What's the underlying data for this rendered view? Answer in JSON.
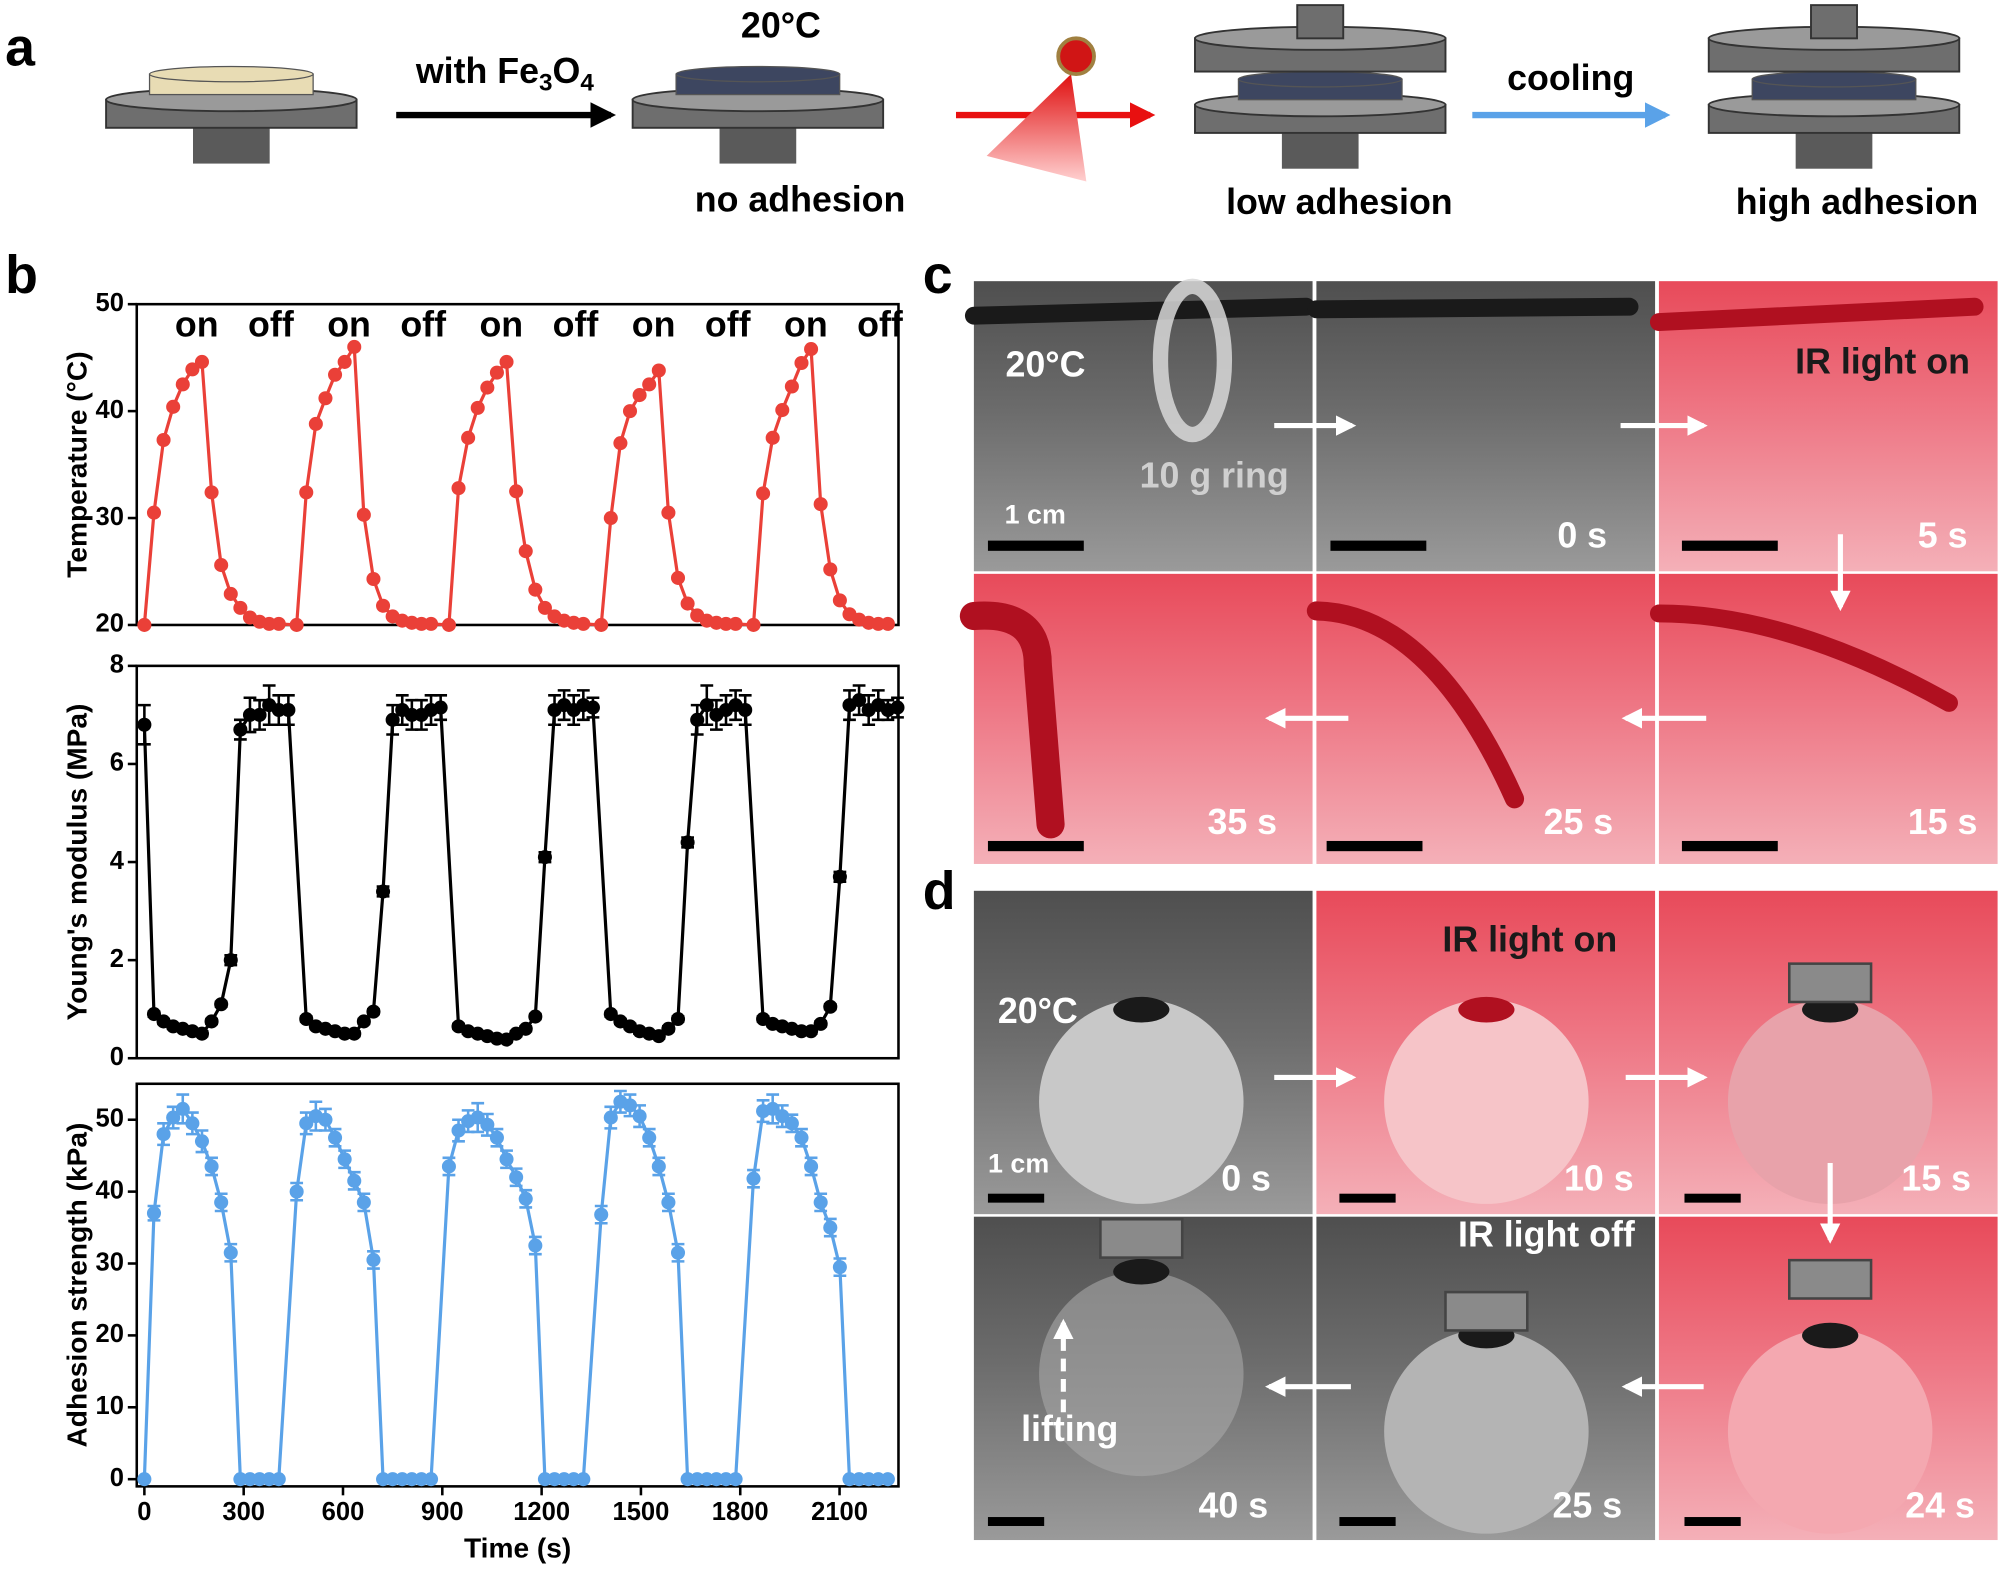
{
  "panel_labels": [
    "a",
    "b",
    "c",
    "d"
  ],
  "panel_a": {
    "step1": [
      "with Fe",
      "3",
      "O",
      "4"
    ],
    "temperature": "20°C",
    "step3": "cooling",
    "states": [
      "no adhesion",
      "low adhesion",
      "high adhesion"
    ]
  },
  "chart_data": [
    {
      "type": "line",
      "ylabel": "Temperature (°C)",
      "color": "#ea4038",
      "annotations": [
        "on",
        "off",
        "on",
        "off",
        "on",
        "off",
        "on",
        "off",
        "on",
        "off"
      ],
      "xlim": [
        -23,
        2278
      ],
      "ylim": [
        20,
        50
      ],
      "yticks": [
        20,
        30,
        40,
        50
      ],
      "x": [
        0,
        29,
        58,
        87,
        116,
        145,
        174,
        203,
        232,
        261,
        290,
        319,
        348,
        377,
        406,
        460,
        489,
        518,
        547,
        576,
        605,
        634,
        663,
        692,
        721,
        750,
        779,
        808,
        837,
        866,
        920,
        949,
        978,
        1007,
        1036,
        1065,
        1094,
        1123,
        1152,
        1181,
        1210,
        1239,
        1268,
        1297,
        1326,
        1380,
        1409,
        1438,
        1467,
        1496,
        1525,
        1554,
        1583,
        1612,
        1641,
        1670,
        1699,
        1728,
        1757,
        1786,
        1840,
        1869,
        1898,
        1927,
        1956,
        1985,
        2014,
        2043,
        2072,
        2101,
        2130,
        2159,
        2188,
        2217,
        2246
      ],
      "values": [
        20,
        30.5,
        37.3,
        40.4,
        42.5,
        43.9,
        44.6,
        32.4,
        25.6,
        22.9,
        21.6,
        20.7,
        20.3,
        20.1,
        20.1,
        20,
        32.4,
        38.8,
        41.2,
        43.4,
        44.6,
        46,
        30.3,
        24.3,
        21.8,
        20.8,
        20.4,
        20.2,
        20.1,
        20.1,
        20,
        32.8,
        37.5,
        40.3,
        42.2,
        43.6,
        44.6,
        32.5,
        26.9,
        23.3,
        21.6,
        20.8,
        20.4,
        20.2,
        20.1,
        20,
        30,
        37,
        40,
        41.5,
        42.5,
        43.8,
        30.5,
        24.4,
        22,
        20.9,
        20.4,
        20.2,
        20.1,
        20.1,
        20,
        32.3,
        37.5,
        40.1,
        42.3,
        44.5,
        45.8,
        31.3,
        25.2,
        22.3,
        21,
        20.5,
        20.2,
        20.1,
        20.1
      ]
    },
    {
      "type": "line",
      "ylabel": "Young's modulus (MPa)",
      "color": "#000000",
      "xlim": [
        -23,
        2278
      ],
      "ylim": [
        0,
        8
      ],
      "yticks": [
        0,
        2,
        4,
        6,
        8
      ],
      "x": [
        0,
        29,
        58,
        87,
        116,
        145,
        174,
        203,
        232,
        261,
        290,
        319,
        348,
        377,
        406,
        435,
        489,
        518,
        547,
        576,
        605,
        634,
        663,
        692,
        721,
        750,
        779,
        808,
        837,
        866,
        895,
        949,
        978,
        1007,
        1036,
        1065,
        1094,
        1123,
        1152,
        1181,
        1210,
        1239,
        1268,
        1297,
        1326,
        1355,
        1409,
        1438,
        1467,
        1496,
        1525,
        1554,
        1583,
        1612,
        1641,
        1670,
        1699,
        1728,
        1757,
        1786,
        1815,
        1869,
        1898,
        1927,
        1956,
        1985,
        2014,
        2043,
        2072,
        2101,
        2130,
        2159,
        2188,
        2217,
        2246,
        2275
      ],
      "values": [
        6.8,
        0.9,
        0.75,
        0.65,
        0.6,
        0.55,
        0.5,
        0.75,
        1.1,
        2.0,
        6.7,
        7.0,
        7.0,
        7.2,
        7.1,
        7.1,
        0.8,
        0.65,
        0.6,
        0.55,
        0.5,
        0.5,
        0.75,
        0.95,
        3.4,
        6.9,
        7.1,
        7.0,
        7.0,
        7.1,
        7.15,
        0.65,
        0.55,
        0.5,
        0.45,
        0.4,
        0.38,
        0.5,
        0.6,
        0.85,
        4.1,
        7.1,
        7.2,
        7.1,
        7.2,
        7.15,
        0.9,
        0.75,
        0.65,
        0.55,
        0.5,
        0.45,
        0.6,
        0.8,
        4.4,
        6.9,
        7.2,
        7.0,
        7.1,
        7.2,
        7.1,
        0.8,
        0.7,
        0.65,
        0.6,
        0.55,
        0.55,
        0.7,
        1.05,
        3.7,
        7.2,
        7.3,
        7.1,
        7.2,
        7.1,
        7.15
      ],
      "errors": [
        0.4,
        0.05,
        0.05,
        0.05,
        0.05,
        0.05,
        0.05,
        0.05,
        0.05,
        0.1,
        0.2,
        0.35,
        0.3,
        0.4,
        0.3,
        0.3,
        0.05,
        0.05,
        0.05,
        0.05,
        0.05,
        0.05,
        0.05,
        0.05,
        0.1,
        0.3,
        0.3,
        0.3,
        0.3,
        0.3,
        0.25,
        0.05,
        0.05,
        0.05,
        0.05,
        0.05,
        0.05,
        0.05,
        0.05,
        0.05,
        0.1,
        0.3,
        0.3,
        0.3,
        0.3,
        0.2,
        0.05,
        0.05,
        0.05,
        0.05,
        0.05,
        0.05,
        0.05,
        0.05,
        0.1,
        0.3,
        0.4,
        0.3,
        0.3,
        0.3,
        0.3,
        0.05,
        0.05,
        0.05,
        0.05,
        0.05,
        0.05,
        0.05,
        0.05,
        0.1,
        0.3,
        0.3,
        0.3,
        0.3,
        0.2,
        0.2
      ]
    },
    {
      "type": "line",
      "ylabel": "Adhesion strength (kPa)",
      "xlabel": "Time (s)",
      "color": "#5aa2e8",
      "xlim": [
        -23,
        2278
      ],
      "ylim": [
        -1,
        55
      ],
      "yticks": [
        0,
        10,
        20,
        30,
        40,
        50
      ],
      "xticks": [
        0,
        300,
        600,
        900,
        1200,
        1500,
        1800,
        2100
      ],
      "x": [
        0,
        29,
        58,
        87,
        116,
        145,
        174,
        203,
        232,
        261,
        290,
        319,
        348,
        377,
        406,
        460,
        489,
        518,
        547,
        576,
        605,
        634,
        663,
        692,
        721,
        750,
        779,
        808,
        837,
        866,
        920,
        949,
        978,
        1007,
        1036,
        1065,
        1094,
        1123,
        1152,
        1181,
        1210,
        1239,
        1268,
        1297,
        1326,
        1380,
        1409,
        1438,
        1467,
        1496,
        1525,
        1554,
        1583,
        1612,
        1641,
        1670,
        1699,
        1728,
        1757,
        1786,
        1840,
        1869,
        1898,
        1927,
        1956,
        1985,
        2014,
        2043,
        2072,
        2101,
        2130,
        2159,
        2188,
        2217,
        2246
      ],
      "values": [
        0,
        37,
        48,
        50.3,
        51.5,
        49.5,
        47,
        43.5,
        38.5,
        31.5,
        0,
        0,
        0,
        0,
        0,
        40,
        49.5,
        50.5,
        50,
        47.5,
        44.5,
        41.5,
        38.5,
        30.5,
        0,
        0,
        0,
        0,
        0,
        0,
        43.5,
        48.5,
        49.8,
        50.3,
        49.3,
        47.5,
        44.5,
        42,
        39,
        32.5,
        0,
        0,
        0,
        0,
        0,
        36.8,
        50.3,
        52.5,
        52,
        50.5,
        47.5,
        43.5,
        38.5,
        31.5,
        0,
        0,
        0,
        0,
        0,
        0,
        41.8,
        51.2,
        51.5,
        50.5,
        49.5,
        47.5,
        43.5,
        38.5,
        35,
        29.5,
        0,
        0,
        0,
        0,
        0
      ],
      "errors": [
        0,
        1,
        1.5,
        1.5,
        2,
        1.5,
        1.5,
        1.2,
        1.2,
        1.2,
        0,
        0,
        0,
        0,
        0,
        1.2,
        1.5,
        2,
        1.5,
        1.2,
        1.2,
        1.2,
        1.2,
        1.2,
        0,
        0,
        0,
        0,
        0,
        0,
        1.2,
        1.5,
        1.5,
        2,
        1.5,
        1.2,
        1.2,
        1.2,
        1.2,
        1.2,
        0,
        0,
        0,
        0,
        0,
        1.2,
        1.5,
        1.5,
        1.5,
        1.5,
        1.2,
        1.2,
        1.2,
        1.2,
        0,
        0,
        0,
        0,
        0,
        0,
        1.2,
        1.5,
        2,
        1.5,
        1.2,
        1.2,
        1.2,
        1.2,
        1.2,
        1.2,
        0,
        0,
        0,
        0,
        0
      ]
    }
  ],
  "panel_c": {
    "temperature": "20°C",
    "ring": "10 g ring",
    "scale": "1 cm",
    "light": "IR light on",
    "times": [
      "0 s",
      "5 s",
      "15 s",
      "25 s",
      "35 s"
    ]
  },
  "panel_d": {
    "temperature": "20°C",
    "scale": "1 cm",
    "light_on": "IR light on",
    "light_off": "IR light off",
    "lifting": "lifting",
    "times": [
      "0 s",
      "10 s",
      "15 s",
      "24 s",
      "25 s",
      "40 s"
    ]
  }
}
